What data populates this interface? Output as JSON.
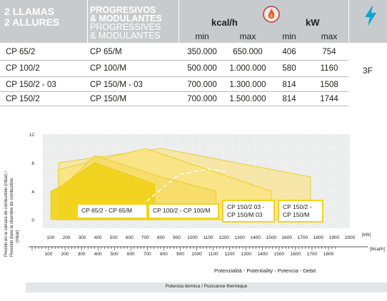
{
  "header": {
    "col1": [
      "2 LLAMAS",
      "2 ALLURES"
    ],
    "col2": [
      "PROGRESIVOS",
      "& MODULANTES",
      "PROGRESSIVES",
      "& MODULANTES"
    ],
    "kcal_unit": "kcal/h",
    "kw_unit": "kW",
    "min_label": "min",
    "max_label": "max",
    "flame_icon": "flame-icon",
    "electric_icon": "lightning-icon"
  },
  "rows": [
    {
      "a": "CP 65/2",
      "b": "CP 65/M",
      "kmin": "350.000",
      "kmax": "650.000",
      "wmin": "406",
      "wmax": "754"
    },
    {
      "a": "CP 100/2",
      "b": "CP 100/M",
      "kmin": "500.000",
      "kmax": "1.000.000",
      "wmin": "580",
      "wmax": "1160"
    },
    {
      "a": "CP 150/2 - 03",
      "b": "CP 150/M - 03",
      "kmin": "700.000",
      "kmax": "1.300.000",
      "wmin": "814",
      "wmax": "1508"
    },
    {
      "a": "CP 150/2",
      "b": "CP 150/M",
      "kmin": "700.000",
      "kmax": "1.500.000",
      "wmin": "814",
      "wmax": "1744"
    }
  ],
  "electric_value": "3F",
  "chart_data": {
    "type": "area",
    "ylabel": "Presión en la cámara de combustión (mbar) / Pression dans la chambre de combustion (mbar)",
    "xlabel": "Potenzialità - Potentiality - Potencia - Debit",
    "footer": "Potencia térmica / Puissance thermique",
    "ylim": [
      0,
      12
    ],
    "yticks": [
      "0",
      "4",
      "8",
      "12"
    ],
    "x_kw": {
      "unit": "kW",
      "ticks": [
        "100",
        "200",
        "300",
        "400",
        "500",
        "600",
        "700",
        "800",
        "900",
        "1000",
        "1100",
        "1200",
        "1300",
        "1400",
        "1500",
        "1600",
        "1700",
        "1800",
        "1900",
        "2000"
      ]
    },
    "x_mcal": {
      "unit": "Mcal/h",
      "ticks": [
        "100",
        "200",
        "300",
        "400",
        "500",
        "600",
        "700",
        "800",
        "900",
        "1000",
        "1100",
        "1200",
        "1300",
        "1400",
        "1500",
        "1600",
        "1700",
        "1800"
      ]
    },
    "series": [
      {
        "name": "CP 150/2 - CP 150/M",
        "color": "#f8e6a0",
        "points": [
          [
            150,
            8
          ],
          [
            800,
            10
          ],
          [
            1750,
            6
          ],
          [
            1750,
            0
          ],
          [
            150,
            0
          ]
        ]
      },
      {
        "name": "CP 150/2 03 - CP 150/M 03",
        "color": "#fbe485",
        "points": [
          [
            150,
            7
          ],
          [
            700,
            10
          ],
          [
            1500,
            4
          ],
          [
            1500,
            0
          ],
          [
            150,
            0
          ]
        ]
      },
      {
        "name": "CP 100/2 - CP 100/M",
        "color": "#f6dd6a",
        "points": [
          [
            150,
            4
          ],
          [
            380,
            9
          ],
          [
            800,
            6
          ],
          [
            1150,
            4
          ],
          [
            1150,
            0
          ],
          [
            150,
            0
          ]
        ]
      },
      {
        "name": "CP 65/2 - CP 65/M",
        "color": "#f2d418",
        "points": [
          [
            100,
            0
          ],
          [
            100,
            4
          ],
          [
            150,
            4.5
          ],
          [
            380,
            8
          ],
          [
            760,
            5
          ],
          [
            760,
            0
          ]
        ]
      }
    ],
    "labels": [
      "CP 65/2 - CP 65/M",
      "CP 100/2 - CP 100/M",
      "CP 150/2 03 -",
      "CP 150/M 03",
      "CP 150/2 -",
      "CP 150/M"
    ]
  }
}
